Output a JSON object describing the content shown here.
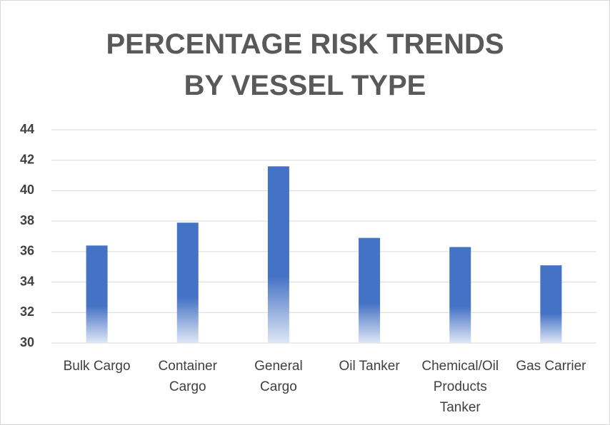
{
  "chart_data": {
    "type": "bar",
    "title": "PERCENTAGE RISK TRENDS BY VESSEL TYPE",
    "categories": [
      "Bulk Cargo",
      "Container Cargo",
      "General Cargo",
      "Oil Tanker",
      "Chemical/Oil Products Tanker",
      "Gas Carrier"
    ],
    "values": [
      36.4,
      37.9,
      41.6,
      36.9,
      36.3,
      35.1
    ],
    "color": "#4472c4",
    "ylim": [
      30,
      44
    ],
    "yticks": [
      30,
      32,
      34,
      36,
      38,
      40,
      42,
      44
    ],
    "grid": true
  }
}
